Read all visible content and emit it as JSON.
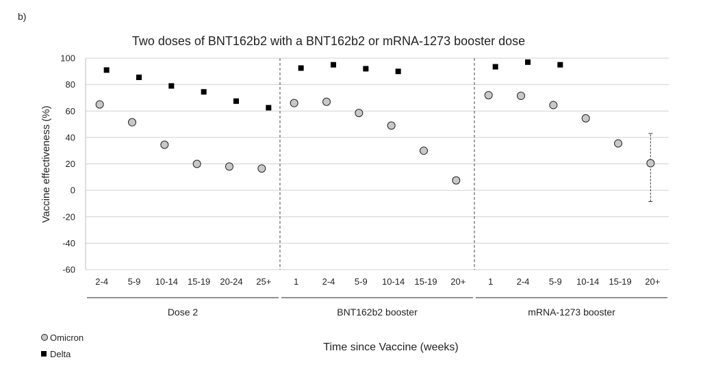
{
  "panel_label": "b)",
  "chart_data": {
    "type": "scatter",
    "title": "Two doses of BNT162b2 with a BNT162b2 or mRNA-1273 booster dose",
    "ylabel": "Vaccine effectiveness (%)",
    "xlabel": "Time since Vaccine (weeks)",
    "ylim": [
      -60,
      100
    ],
    "yticks": [
      -60,
      -40,
      -20,
      0,
      20,
      40,
      60,
      80,
      100
    ],
    "grid": true,
    "legend_position": "bottom-left",
    "groups": [
      {
        "name": "Dose 2",
        "categories": [
          "2-4",
          "5-9",
          "10-14",
          "15-19",
          "20-24",
          "25+"
        ]
      },
      {
        "name": "BNT162b2 booster",
        "categories": [
          "1",
          "2-4",
          "5-9",
          "10-14",
          "15-19",
          "20+"
        ]
      },
      {
        "name": "mRNA-1273 booster",
        "categories": [
          "1",
          "2-4",
          "5-9",
          "10-14",
          "15-19",
          "20+"
        ]
      }
    ],
    "series": [
      {
        "name": "Omicron",
        "marker": "circle",
        "color": "#c8c8c8",
        "values": [
          [
            65,
            51.5,
            34.5,
            20,
            18,
            16.5
          ],
          [
            66,
            67,
            58.5,
            49,
            30,
            7.5
          ],
          [
            72,
            71.5,
            64.5,
            54.5,
            35.5,
            20.5
          ]
        ],
        "errors": [
          [
            null,
            null,
            null,
            null,
            null,
            null
          ],
          [
            null,
            null,
            null,
            null,
            null,
            null
          ],
          [
            null,
            null,
            null,
            null,
            [
              34,
              38
            ],
            [
              -8.5,
              43
            ]
          ]
        ]
      },
      {
        "name": "Delta",
        "marker": "square",
        "color": "#000000",
        "values": [
          [
            91,
            85.5,
            79,
            74.5,
            67.5,
            62.5
          ],
          [
            92.5,
            95,
            92,
            90,
            null,
            null
          ],
          [
            93.5,
            97,
            95,
            null,
            null,
            null
          ]
        ]
      }
    ]
  }
}
